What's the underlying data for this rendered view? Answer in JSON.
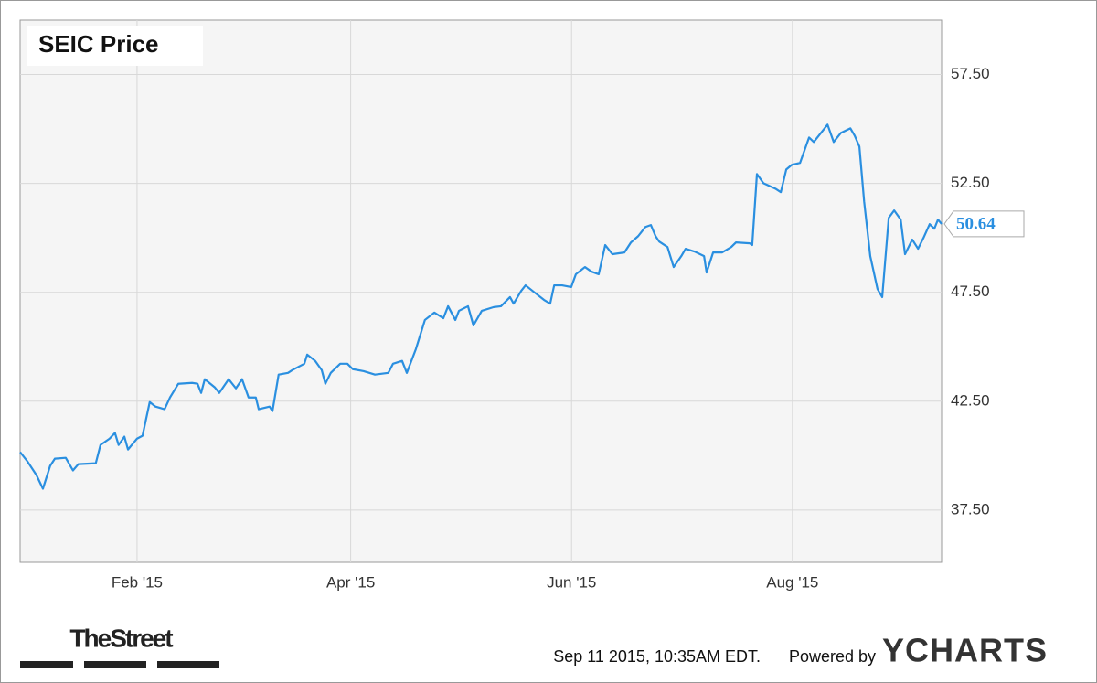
{
  "chart_data": {
    "type": "line",
    "title": "SEIC Price",
    "x": [
      -1.3,
      0.7,
      3.2,
      5.0,
      7.0,
      8.3,
      11.3,
      13.3,
      14.8,
      19.6,
      20.9,
      23.4,
      24.9,
      25.9,
      27.5,
      28.5,
      31.0,
      32.5,
      34.5,
      36.1,
      38.6,
      40.1,
      42.4,
      46.2,
      47.7,
      48.7,
      49.7,
      52.5,
      53.7,
      56.3,
      58.3,
      60.0,
      61.8,
      63.8,
      64.6,
      67.6,
      68.4,
      70.1,
      72.7,
      73.9,
      77.2,
      78.0,
      80.2,
      82.0,
      83.0,
      84.5,
      87.1,
      89.1,
      90.6,
      93.6,
      96.7,
      100.4,
      101.7,
      104.2,
      105.5,
      108.0,
      110.5,
      113.1,
      115.6,
      116.9,
      118.9,
      119.9,
      122.4,
      123.9,
      126.2,
      129.5,
      131.5,
      134.0,
      135.0,
      137.1,
      138.3,
      140.8,
      143.4,
      145.1,
      146.2,
      148.4,
      150.9,
      152.2,
      154.7,
      156.5,
      158.5,
      160.3,
      162.3,
      165.6,
      167.4,
      169.4,
      171.4,
      172.9,
      174.2,
      175.2,
      177.5,
      179.2,
      181.3,
      182.5,
      185.0,
      187.6,
      188.3,
      190.1,
      192.6,
      195.1,
      196.4,
      200.2,
      200.9,
      202.2,
      204.0,
      207.3,
      208.8,
      210.3,
      211.8,
      214.1,
      216.6,
      217.9,
      219.9,
      221.7,
      223.4,
      225.4,
      228.0,
      229.2,
      230.5,
      231.8,
      233.5,
      235.5,
      236.8,
      238.6,
      240.1,
      241.9,
      243.1,
      245.1,
      246.7,
      248.2,
      249.9,
      251.2,
      252.2,
      253.2
    ],
    "series": [
      {
        "name": "SEIC",
        "color": "#2a8fe0",
        "values": [
          40.16,
          39.74,
          39.11,
          38.48,
          39.53,
          39.86,
          39.9,
          39.32,
          39.61,
          39.65,
          40.49,
          40.78,
          41.04,
          40.49,
          40.87,
          40.28,
          40.78,
          40.91,
          42.46,
          42.25,
          42.13,
          42.67,
          43.3,
          43.34,
          43.3,
          42.88,
          43.51,
          43.13,
          42.88,
          43.51,
          43.09,
          43.51,
          42.67,
          42.67,
          42.13,
          42.25,
          42.04,
          43.72,
          43.8,
          43.93,
          44.22,
          44.64,
          44.35,
          43.93,
          43.3,
          43.8,
          44.22,
          44.22,
          43.97,
          43.88,
          43.72,
          43.8,
          44.22,
          44.35,
          43.8,
          44.89,
          46.23,
          46.57,
          46.31,
          46.86,
          46.23,
          46.65,
          46.86,
          45.98,
          46.65,
          46.82,
          46.86,
          47.28,
          46.98,
          47.57,
          47.82,
          47.49,
          47.15,
          46.98,
          47.82,
          47.82,
          47.74,
          48.33,
          48.66,
          48.45,
          48.33,
          49.67,
          49.25,
          49.33,
          49.79,
          50.08,
          50.5,
          50.59,
          50.08,
          49.83,
          49.58,
          48.66,
          49.16,
          49.5,
          49.37,
          49.16,
          48.41,
          49.33,
          49.33,
          49.58,
          49.79,
          49.75,
          49.67,
          52.93,
          52.51,
          52.26,
          52.1,
          53.14,
          53.35,
          53.44,
          54.61,
          54.4,
          54.82,
          55.2,
          54.4,
          54.82,
          55.03,
          54.69,
          54.19,
          51.68,
          49.16,
          47.65,
          47.28,
          50.92,
          51.26,
          50.84,
          49.25,
          49.92,
          49.5,
          50.0,
          50.63,
          50.42,
          50.84,
          50.64
        ]
      }
    ],
    "xlim": [
      -1.3,
      253.2
    ],
    "xticks": [
      {
        "value": 31,
        "label": "Feb '15"
      },
      {
        "value": 90,
        "label": "Apr '15"
      },
      {
        "value": 151,
        "label": "Jun '15"
      },
      {
        "value": 212,
        "label": "Aug '15"
      }
    ],
    "ylim": [
      35.1,
      60
    ],
    "yticks": [
      {
        "value": 37.5,
        "label": "37.50"
      },
      {
        "value": 42.5,
        "label": "42.50"
      },
      {
        "value": 47.5,
        "label": "47.50"
      },
      {
        "value": 52.5,
        "label": "52.50"
      },
      {
        "value": 57.5,
        "label": "57.50"
      }
    ],
    "grid": true
  },
  "footer": {
    "source_logo": "TheStreet",
    "timestamp": "Sep 11 2015, 10:35AM EDT.",
    "powered_by": "Powered by",
    "brand": "YCHARTS"
  }
}
